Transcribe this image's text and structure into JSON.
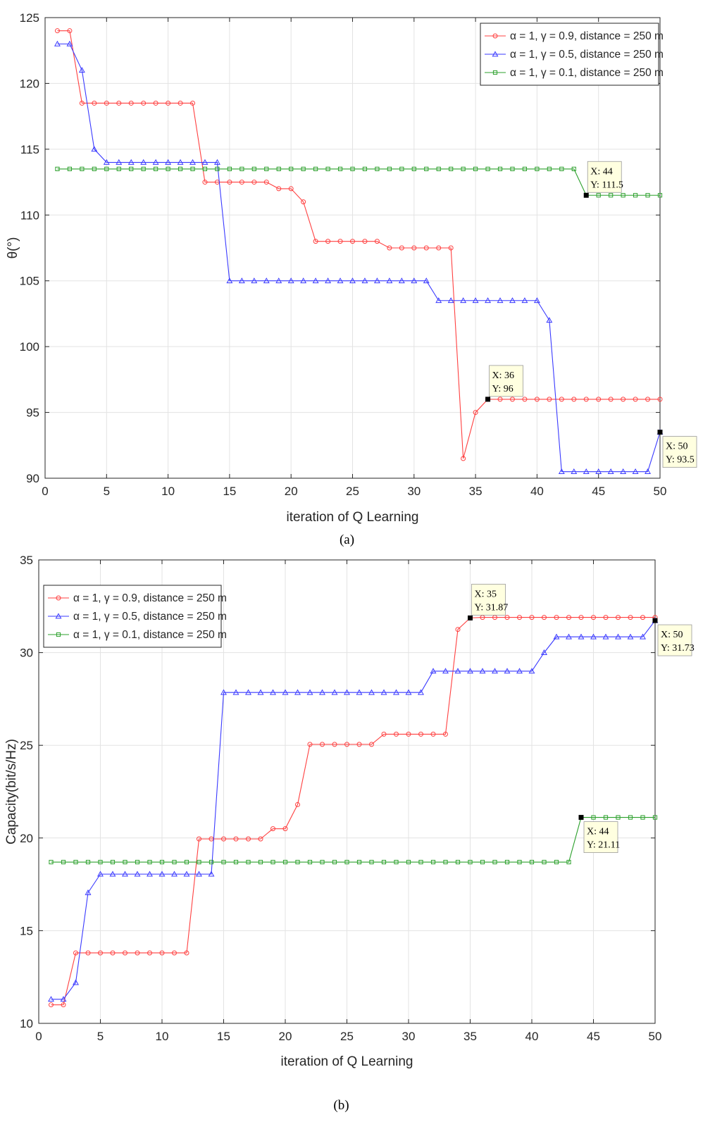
{
  "chart_data": [
    {
      "type": "line",
      "caption": "(a)",
      "xlabel": "iteration of Q Learning",
      "ylabel": "θ(°)",
      "xlim": [
        0,
        50
      ],
      "ylim": [
        90,
        125
      ],
      "xticks": [
        0,
        5,
        10,
        15,
        20,
        25,
        30,
        35,
        40,
        45,
        50
      ],
      "yticks": [
        90,
        95,
        100,
        105,
        110,
        115,
        120,
        125
      ],
      "grid": true,
      "legend_position": "top-right",
      "x": [
        1,
        2,
        3,
        4,
        5,
        6,
        7,
        8,
        9,
        10,
        11,
        12,
        13,
        14,
        15,
        16,
        17,
        18,
        19,
        20,
        21,
        22,
        23,
        24,
        25,
        26,
        27,
        28,
        29,
        30,
        31,
        32,
        33,
        34,
        35,
        36,
        37,
        38,
        39,
        40,
        41,
        42,
        43,
        44,
        45,
        46,
        47,
        48,
        49,
        50
      ],
      "series": [
        {
          "name": "α = 1, γ = 0.9, distance = 250 m",
          "color": "#ff4040",
          "marker": "circle",
          "values": [
            124,
            124,
            118.5,
            118.5,
            118.5,
            118.5,
            118.5,
            118.5,
            118.5,
            118.5,
            118.5,
            118.5,
            112.5,
            112.5,
            112.5,
            112.5,
            112.5,
            112.5,
            112,
            112,
            111,
            108,
            108,
            108,
            108,
            108,
            108,
            107.5,
            107.5,
            107.5,
            107.5,
            107.5,
            107.5,
            91.5,
            95,
            96,
            96,
            96,
            96,
            96,
            96,
            96,
            96,
            96,
            96,
            96,
            96,
            96,
            96,
            96
          ]
        },
        {
          "name": "α = 1, γ = 0.5, distance = 250 m",
          "color": "#3a3aff",
          "marker": "triangle",
          "values": [
            123,
            123,
            121,
            115,
            114,
            114,
            114,
            114,
            114,
            114,
            114,
            114,
            114,
            114,
            105,
            105,
            105,
            105,
            105,
            105,
            105,
            105,
            105,
            105,
            105,
            105,
            105,
            105,
            105,
            105,
            105,
            103.5,
            103.5,
            103.5,
            103.5,
            103.5,
            103.5,
            103.5,
            103.5,
            103.5,
            102,
            90.5,
            90.5,
            90.5,
            90.5,
            90.5,
            90.5,
            90.5,
            90.5,
            93.5
          ]
        },
        {
          "name": "α = 1, γ = 0.1, distance = 250 m",
          "color": "#2ca02c",
          "marker": "square",
          "values": [
            113.5,
            113.5,
            113.5,
            113.5,
            113.5,
            113.5,
            113.5,
            113.5,
            113.5,
            113.5,
            113.5,
            113.5,
            113.5,
            113.5,
            113.5,
            113.5,
            113.5,
            113.5,
            113.5,
            113.5,
            113.5,
            113.5,
            113.5,
            113.5,
            113.5,
            113.5,
            113.5,
            113.5,
            113.5,
            113.5,
            113.5,
            113.5,
            113.5,
            113.5,
            113.5,
            113.5,
            113.5,
            113.5,
            113.5,
            113.5,
            113.5,
            113.5,
            113.5,
            111.5,
            111.5,
            111.5,
            111.5,
            111.5,
            111.5,
            111.5
          ]
        }
      ],
      "datatips": [
        {
          "x": 44,
          "y": 111.5,
          "line1": "X: 44",
          "line2": "Y: 111.5",
          "side": "above"
        },
        {
          "x": 36,
          "y": 96,
          "line1": "X: 36",
          "line2": "Y: 96",
          "side": "above"
        },
        {
          "x": 50,
          "y": 93.5,
          "line1": "X: 50",
          "line2": "Y: 93.5",
          "side": "below"
        }
      ]
    },
    {
      "type": "line",
      "caption": "(b)",
      "xlabel": "iteration of Q Learning",
      "ylabel": "Capacity(bit/s/Hz)",
      "xlim": [
        0,
        50
      ],
      "ylim": [
        10,
        35
      ],
      "xticks": [
        0,
        5,
        10,
        15,
        20,
        25,
        30,
        35,
        40,
        45,
        50
      ],
      "yticks": [
        10,
        15,
        20,
        25,
        30,
        35
      ],
      "grid": true,
      "legend_position": "top-left",
      "x": [
        1,
        2,
        3,
        4,
        5,
        6,
        7,
        8,
        9,
        10,
        11,
        12,
        13,
        14,
        15,
        16,
        17,
        18,
        19,
        20,
        21,
        22,
        23,
        24,
        25,
        26,
        27,
        28,
        29,
        30,
        31,
        32,
        33,
        34,
        35,
        36,
        37,
        38,
        39,
        40,
        41,
        42,
        43,
        44,
        45,
        46,
        47,
        48,
        49,
        50
      ],
      "series": [
        {
          "name": "α = 1, γ = 0.9, distance = 250 m",
          "color": "#ff4040",
          "marker": "circle",
          "values": [
            11,
            11,
            13.8,
            13.8,
            13.8,
            13.8,
            13.8,
            13.8,
            13.8,
            13.8,
            13.8,
            13.8,
            19.95,
            19.95,
            19.95,
            19.95,
            19.95,
            19.95,
            20.5,
            20.5,
            21.8,
            25.05,
            25.05,
            25.05,
            25.05,
            25.05,
            25.05,
            25.6,
            25.6,
            25.6,
            25.6,
            25.6,
            25.6,
            31.25,
            31.87,
            31.9,
            31.9,
            31.9,
            31.9,
            31.9,
            31.9,
            31.9,
            31.9,
            31.9,
            31.9,
            31.9,
            31.9,
            31.9,
            31.9,
            31.9
          ]
        },
        {
          "name": "α = 1, γ = 0.5, distance = 250 m",
          "color": "#3a3aff",
          "marker": "triangle",
          "values": [
            11.3,
            11.3,
            12.2,
            17.05,
            18.05,
            18.05,
            18.05,
            18.05,
            18.05,
            18.05,
            18.05,
            18.05,
            18.05,
            18.05,
            27.85,
            27.85,
            27.85,
            27.85,
            27.85,
            27.85,
            27.85,
            27.85,
            27.85,
            27.85,
            27.85,
            27.85,
            27.85,
            27.85,
            27.85,
            27.85,
            27.85,
            29,
            29,
            29,
            29,
            29,
            29,
            29,
            29,
            29,
            30,
            30.85,
            30.85,
            30.85,
            30.85,
            30.85,
            30.85,
            30.85,
            30.85,
            31.73
          ]
        },
        {
          "name": "α = 1, γ = 0.1, distance = 250 m",
          "color": "#2ca02c",
          "marker": "square",
          "values": [
            18.7,
            18.7,
            18.7,
            18.7,
            18.7,
            18.7,
            18.7,
            18.7,
            18.7,
            18.7,
            18.7,
            18.7,
            18.7,
            18.7,
            18.7,
            18.7,
            18.7,
            18.7,
            18.7,
            18.7,
            18.7,
            18.7,
            18.7,
            18.7,
            18.7,
            18.7,
            18.7,
            18.7,
            18.7,
            18.7,
            18.7,
            18.7,
            18.7,
            18.7,
            18.7,
            18.7,
            18.7,
            18.7,
            18.7,
            18.7,
            18.7,
            18.7,
            18.7,
            21.11,
            21.11,
            21.11,
            21.11,
            21.11,
            21.11,
            21.11
          ]
        }
      ],
      "datatips": [
        {
          "x": 35,
          "y": 31.87,
          "line1": "X: 35",
          "line2": "Y: 31.87",
          "side": "above"
        },
        {
          "x": 50,
          "y": 31.73,
          "line1": "X: 50",
          "line2": "Y: 31.73",
          "side": "below"
        },
        {
          "x": 44,
          "y": 21.11,
          "line1": "X: 44",
          "line2": "Y: 21.11",
          "side": "below"
        }
      ]
    }
  ]
}
